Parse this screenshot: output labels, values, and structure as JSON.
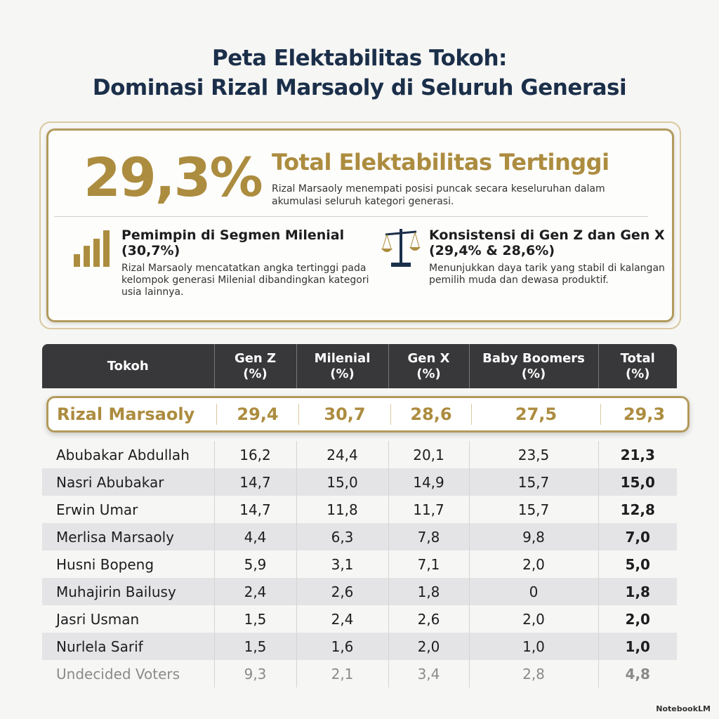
{
  "title": [
    "Peta Elektabilitas Tokoh:",
    "Dominasi Rizal Marsaoly di Seluruh Generasi"
  ],
  "summary": {
    "big_value": "29,3%",
    "headline": "Total Elektabilitas Tertinggi",
    "subtext": "Rizal Marsaoly menempati posisi puncak secara keseluruhan dalam akumulasi seluruh kategori generasi.",
    "features": [
      {
        "icon": "bar-chart-icon",
        "title": "Pemimpin di Segmen Milenial (30,7%)",
        "text": "Rizal Marsaoly mencatatkan angka tertinggi pada kelompok generasi Milenial dibandingkan kategori usia lainnya."
      },
      {
        "icon": "scale-icon",
        "title": "Konsistensi di Gen Z dan Gen X (29,4% & 28,6%)",
        "text": "Menunjukkan daya tarik yang stabil di kalangan pemilih muda dan dewasa produktif."
      }
    ]
  },
  "table": {
    "headers": [
      [
        "Tokoh",
        ""
      ],
      [
        "Gen Z",
        "(%)"
      ],
      [
        "Milenial",
        "(%)"
      ],
      [
        "Gen X",
        "(%)"
      ],
      [
        "Baby Boomers",
        "(%)"
      ],
      [
        "Total",
        "(%)"
      ]
    ],
    "highlight": [
      "Rizal Marsaoly",
      "29,4",
      "30,7",
      "28,6",
      "27,5",
      "29,3"
    ],
    "rows": [
      [
        "Abubakar Abdullah",
        "16,2",
        "24,4",
        "20,1",
        "23,5",
        "21,3"
      ],
      [
        "Nasri Abubakar",
        "14,7",
        "15,0",
        "14,9",
        "15,7",
        "15,0"
      ],
      [
        "Erwin Umar",
        "14,7",
        "11,8",
        "11,7",
        "15,7",
        "12,8"
      ],
      [
        "Merlisa Marsaoly",
        "4,4",
        "6,3",
        "7,8",
        "9,8",
        "7,0"
      ],
      [
        "Husni Bopeng",
        "5,9",
        "3,1",
        "7,1",
        "2,0",
        "5,0"
      ],
      [
        "Muhajirin Bailusy",
        "2,4",
        "2,6",
        "1,8",
        "0",
        "1,8"
      ],
      [
        "Jasri Usman",
        "1,5",
        "2,4",
        "2,6",
        "2,0",
        "2,0"
      ],
      [
        "Nurlela Sarif",
        "1,5",
        "1,6",
        "2,0",
        "1,0",
        "1,0"
      ],
      [
        "Undecided Voters",
        "9,3",
        "2,1",
        "3,4",
        "2,8",
        "4,8"
      ]
    ]
  },
  "watermark": "NotebookLM",
  "colors": {
    "gold": "#ac8c3f",
    "navy": "#1b2f4a",
    "header_bg": "#38383a"
  }
}
